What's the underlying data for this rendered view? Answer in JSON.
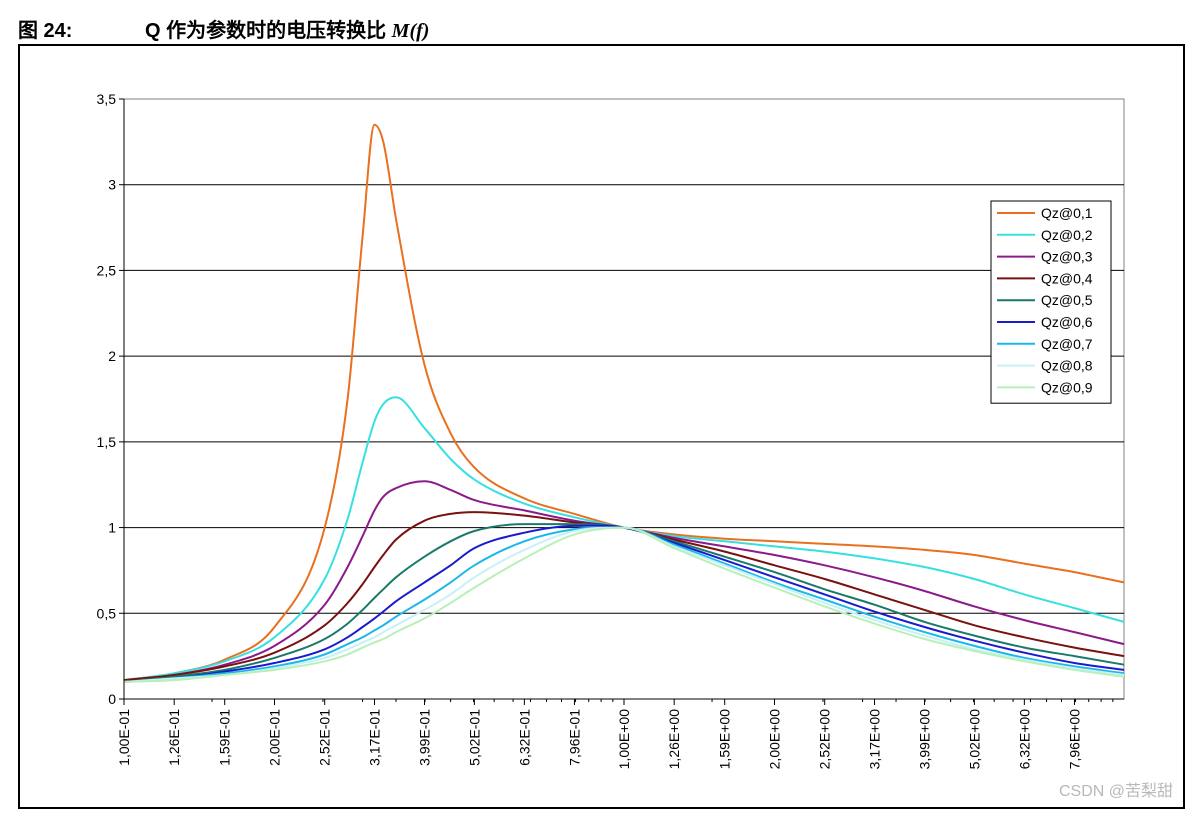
{
  "caption": {
    "figure_number": "图 24:",
    "title_prefix": "Q 作为参数时的电压转换比 ",
    "title_func": "M(f)"
  },
  "watermark": "CSDN @苦梨甜",
  "chart_data": {
    "type": "line",
    "title": "",
    "xlabel": "",
    "ylabel": "",
    "x_scale": "log",
    "xlim": [
      0.1,
      10
    ],
    "ylim": [
      0,
      3.5
    ],
    "grid": "horizontal",
    "legend_position": "right",
    "x_tick_values": [
      0.1,
      0.126,
      0.159,
      0.2,
      0.252,
      0.317,
      0.399,
      0.502,
      0.632,
      0.796,
      1.0,
      1.26,
      1.59,
      2.0,
      2.52,
      3.17,
      3.99,
      5.02,
      6.32,
      7.96
    ],
    "x_tick_labels": [
      "1,00E-01",
      "1,26E-01",
      "1,59E-01",
      "2,00E-01",
      "2,52E-01",
      "3,17E-01",
      "3,99E-01",
      "5,02E-01",
      "6,32E-01",
      "7,96E-01",
      "1,00E+00",
      "1,26E+00",
      "1,59E+00",
      "2,00E+00",
      "2,52E+00",
      "3,17E+00",
      "3,99E+00",
      "5,02E+00",
      "6,32E+00",
      "7,96E+00"
    ],
    "y_tick_values": [
      0,
      0.5,
      1,
      1.5,
      2,
      2.5,
      3,
      3.5
    ],
    "y_tick_labels": [
      "0",
      "0,5",
      "1",
      "1,5",
      "2",
      "2,5",
      "3",
      "3,5"
    ],
    "x": [
      0.1,
      0.126,
      0.159,
      0.2,
      0.252,
      0.28,
      0.3,
      0.317,
      0.33,
      0.35,
      0.399,
      0.45,
      0.502,
      0.632,
      0.796,
      1.0,
      1.26,
      1.59,
      2.0,
      2.52,
      3.17,
      3.99,
      5.02,
      6.32,
      7.96,
      10.0
    ],
    "series": [
      {
        "name": "Qz@0,1",
        "color": "#e8701e",
        "values": [
          0.11,
          0.15,
          0.23,
          0.42,
          1.0,
          1.75,
          2.7,
          3.35,
          3.25,
          2.8,
          1.95,
          1.55,
          1.35,
          1.17,
          1.08,
          1.0,
          0.96,
          0.935,
          0.92,
          0.905,
          0.89,
          0.87,
          0.84,
          0.79,
          0.74,
          0.68
        ]
      },
      {
        "name": "Qz@0,2",
        "color": "#36e0e0",
        "values": [
          0.11,
          0.15,
          0.22,
          0.36,
          0.7,
          1.05,
          1.38,
          1.62,
          1.72,
          1.76,
          1.58,
          1.4,
          1.28,
          1.14,
          1.06,
          1.0,
          0.95,
          0.92,
          0.89,
          0.86,
          0.82,
          0.77,
          0.7,
          0.61,
          0.53,
          0.45
        ]
      },
      {
        "name": "Qz@0,3",
        "color": "#8b1a8b",
        "values": [
          0.11,
          0.14,
          0.2,
          0.31,
          0.55,
          0.77,
          0.95,
          1.1,
          1.18,
          1.23,
          1.27,
          1.22,
          1.16,
          1.1,
          1.04,
          1.0,
          0.94,
          0.89,
          0.84,
          0.78,
          0.71,
          0.63,
          0.54,
          0.46,
          0.39,
          0.32
        ]
      },
      {
        "name": "Qz@0,4",
        "color": "#7a1010",
        "values": [
          0.11,
          0.14,
          0.19,
          0.27,
          0.43,
          0.56,
          0.67,
          0.77,
          0.84,
          0.93,
          1.04,
          1.08,
          1.09,
          1.07,
          1.03,
          1.0,
          0.93,
          0.86,
          0.78,
          0.7,
          0.61,
          0.52,
          0.43,
          0.36,
          0.3,
          0.25
        ]
      },
      {
        "name": "Qz@0,5",
        "color": "#1a7a6a",
        "values": [
          0.1,
          0.13,
          0.17,
          0.24,
          0.35,
          0.44,
          0.52,
          0.59,
          0.64,
          0.71,
          0.83,
          0.92,
          0.98,
          1.02,
          1.02,
          1.0,
          0.92,
          0.83,
          0.74,
          0.64,
          0.55,
          0.45,
          0.37,
          0.3,
          0.25,
          0.2
        ]
      },
      {
        "name": "Qz@0,6",
        "color": "#1a1ad0",
        "values": [
          0.1,
          0.12,
          0.16,
          0.21,
          0.29,
          0.36,
          0.42,
          0.47,
          0.51,
          0.57,
          0.68,
          0.78,
          0.88,
          0.97,
          1.01,
          1.0,
          0.91,
          0.81,
          0.71,
          0.61,
          0.51,
          0.42,
          0.34,
          0.27,
          0.21,
          0.17
        ]
      },
      {
        "name": "Qz@0,7",
        "color": "#1ab8e8",
        "values": [
          0.1,
          0.12,
          0.15,
          0.19,
          0.26,
          0.32,
          0.36,
          0.4,
          0.43,
          0.48,
          0.58,
          0.68,
          0.78,
          0.92,
          0.99,
          1.0,
          0.9,
          0.79,
          0.68,
          0.58,
          0.48,
          0.39,
          0.31,
          0.24,
          0.19,
          0.15
        ]
      },
      {
        "name": "Qz@0,8",
        "color": "#c8f0f8",
        "values": [
          0.1,
          0.12,
          0.14,
          0.18,
          0.24,
          0.29,
          0.33,
          0.36,
          0.39,
          0.43,
          0.52,
          0.61,
          0.71,
          0.87,
          0.98,
          1.0,
          0.89,
          0.78,
          0.67,
          0.56,
          0.46,
          0.37,
          0.29,
          0.23,
          0.18,
          0.14
        ]
      },
      {
        "name": "Qz@0,9",
        "color": "#b8f0b8",
        "values": [
          0.1,
          0.11,
          0.14,
          0.17,
          0.22,
          0.26,
          0.3,
          0.33,
          0.35,
          0.39,
          0.47,
          0.56,
          0.65,
          0.82,
          0.96,
          1.0,
          0.88,
          0.76,
          0.65,
          0.54,
          0.44,
          0.35,
          0.28,
          0.22,
          0.17,
          0.13
        ]
      }
    ]
  }
}
